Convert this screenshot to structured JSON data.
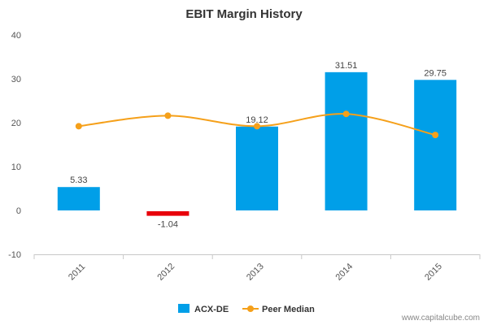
{
  "chart_data": {
    "type": "bar",
    "title": "EBIT Margin History",
    "xlabel": "",
    "ylabel": "",
    "categories": [
      "2011",
      "2012",
      "2013",
      "2014",
      "2015"
    ],
    "ylim": [
      -10,
      40
    ],
    "yticks": [
      -10,
      0,
      10,
      20,
      30,
      40
    ],
    "grid": false,
    "legend_position": "bottom-center",
    "series": [
      {
        "name": "ACX-DE",
        "type": "bar",
        "values": [
          5.33,
          -1.04,
          19.12,
          31.51,
          29.75
        ],
        "labels": [
          "5.33",
          "-1.04",
          "19.12",
          "31.51",
          "29.75"
        ],
        "color": "#009fe8",
        "negative_color": "#e8000b"
      },
      {
        "name": "Peer Median",
        "type": "line",
        "values": [
          19.2,
          21.6,
          19.2,
          22.0,
          17.2
        ],
        "color": "#f5a01a"
      }
    ]
  },
  "legend": {
    "items": [
      {
        "label": "ACX-DE",
        "color": "#009fe8"
      },
      {
        "label": "Peer Median",
        "color": "#f5a01a"
      }
    ]
  },
  "watermark": "www.capitalcube.com"
}
